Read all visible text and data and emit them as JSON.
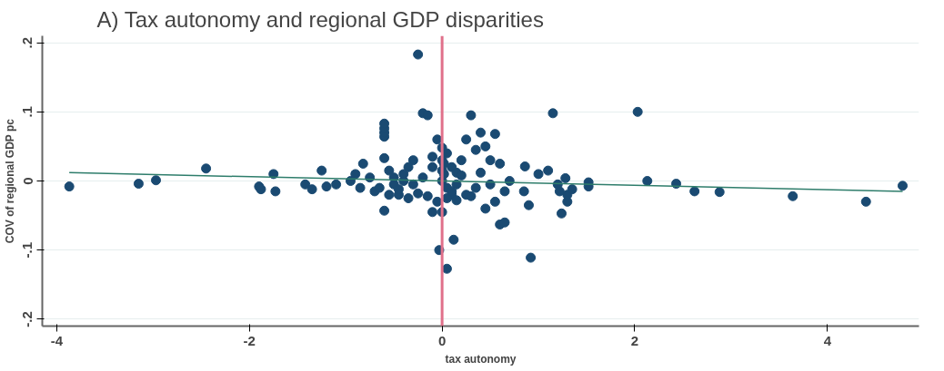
{
  "chart_data": {
    "type": "scatter",
    "title": "A) Tax autonomy and regional GDP disparities",
    "xlabel": "tax autonomy",
    "ylabel": "COV of regional GDP pc",
    "xlim": [
      -4.15,
      4.95
    ],
    "ylim": [
      -0.21,
      0.21
    ],
    "xticks": [
      -4,
      -2,
      0,
      2,
      4
    ],
    "yticks": [
      {
        "value": -0.2,
        "label": "-.2"
      },
      {
        "value": -0.1,
        "label": "-.1"
      },
      {
        "value": 0,
        "label": "0"
      },
      {
        "value": 0.1,
        "label": ".1"
      },
      {
        "value": 0.2,
        "label": ".2"
      }
    ],
    "grid": "y",
    "ref_lines": [
      {
        "axis": "x",
        "value": 0,
        "color": "#e0708a"
      }
    ],
    "series": [
      {
        "marker": "circle",
        "color": "#1a4a72",
        "x": [
          -3.87,
          -3.15,
          -2.97,
          -2.45,
          -1.9,
          -1.88,
          -1.75,
          -1.73,
          -1.42,
          -1.35,
          -1.25,
          -1.2,
          -1.1,
          -0.95,
          -0.9,
          -0.82,
          -0.85,
          -0.75,
          -0.7,
          -0.6,
          -0.6,
          -0.6,
          -0.6,
          -0.6,
          -0.6,
          -0.55,
          -0.5,
          -0.45,
          -0.4,
          -0.35,
          -0.3,
          -0.25,
          -0.2,
          -0.15,
          -0.1,
          -0.05,
          -0.1,
          0.0,
          -0.03,
          0.05,
          0.12,
          0.0,
          0.05,
          0.1,
          0.15,
          0.2,
          0.25,
          0.0,
          0.05,
          0.1,
          0.15,
          0.3,
          0.35,
          0.4,
          0.55,
          0.45,
          0.5,
          0.6,
          0.5,
          0.55,
          0.45,
          0.65,
          0.7,
          0.6,
          0.65,
          0.85,
          0.92,
          0.86,
          0.9,
          1.0,
          1.1,
          1.15,
          1.2,
          1.22,
          1.24,
          1.28,
          1.3,
          1.3,
          1.35,
          1.52,
          1.52,
          2.03,
          2.13,
          2.43,
          2.62,
          2.88,
          3.64,
          4.4,
          4.78,
          -0.65,
          -0.55,
          -0.45,
          -0.35,
          -0.25,
          -0.15,
          -0.05,
          0.05,
          0.15,
          0.25,
          0.35,
          -0.4,
          -0.2,
          0.0,
          0.2,
          0.4,
          -0.3,
          -0.1,
          0.1,
          0.3,
          -0.5,
          0.0,
          0.02,
          0.02
        ],
        "values": [
          -0.008,
          -0.004,
          0.001,
          0.018,
          -0.008,
          -0.012,
          0.01,
          -0.015,
          -0.005,
          -0.012,
          0.015,
          -0.008,
          -0.005,
          0.0,
          0.01,
          0.025,
          -0.01,
          0.005,
          -0.015,
          -0.043,
          0.033,
          0.064,
          0.07,
          0.076,
          0.083,
          0.015,
          -0.005,
          -0.02,
          0.0,
          0.02,
          0.03,
          0.183,
          0.098,
          0.095,
          0.035,
          0.06,
          -0.045,
          -0.045,
          -0.1,
          -0.127,
          -0.085,
          0.048,
          0.04,
          0.02,
          0.012,
          0.03,
          0.06,
          0.0,
          -0.01,
          -0.02,
          -0.005,
          0.095,
          0.045,
          0.07,
          0.068,
          0.05,
          0.03,
          0.025,
          -0.005,
          -0.03,
          -0.04,
          -0.015,
          0.0,
          -0.063,
          -0.06,
          -0.015,
          -0.111,
          0.021,
          -0.035,
          0.01,
          0.015,
          0.098,
          -0.005,
          -0.015,
          -0.047,
          0.004,
          -0.03,
          -0.02,
          -0.012,
          -0.002,
          -0.008,
          0.1,
          0.0,
          -0.004,
          -0.015,
          -0.016,
          -0.022,
          -0.03,
          -0.007,
          -0.01,
          -0.02,
          -0.012,
          -0.025,
          -0.018,
          -0.022,
          -0.03,
          -0.025,
          -0.028,
          -0.02,
          -0.01,
          0.01,
          0.005,
          0.015,
          0.008,
          0.012,
          -0.005,
          0.02,
          -0.015,
          -0.022,
          0.005,
          0.03,
          0.025,
          0.01
        ]
      },
      {
        "type": "line",
        "marker": "none",
        "color": "#2e7d6b",
        "x": [
          -3.87,
          4.78
        ],
        "values": [
          0.012,
          -0.015
        ]
      }
    ]
  }
}
